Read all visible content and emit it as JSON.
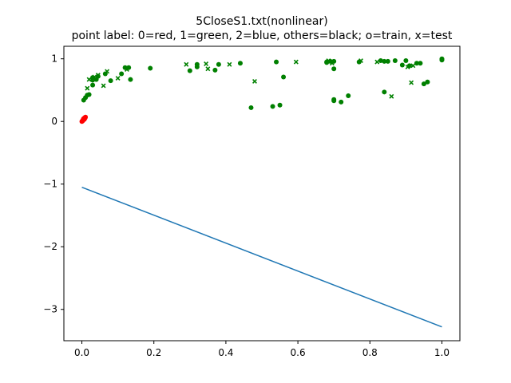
{
  "chart_data": {
    "type": "scatter",
    "title": "5CloseS1.txt(nonlinear)",
    "subtitle": "point label: 0=red, 1=green, 2=blue, others=black; o=train, x=test",
    "xlim": [
      -0.05,
      1.05
    ],
    "ylim": [
      -3.5,
      1.2
    ],
    "x_ticks": [
      0.0,
      0.2,
      0.4,
      0.6,
      0.8,
      1.0
    ],
    "x_tick_labels": [
      "0.0",
      "0.2",
      "0.4",
      "0.6",
      "0.8",
      "1.0"
    ],
    "y_ticks": [
      -3,
      -2,
      -1,
      0,
      1
    ],
    "y_tick_labels": [
      "−3",
      "−2",
      "−1",
      "0",
      "1"
    ],
    "grid": false,
    "colors": {
      "red": "#ff0000",
      "green": "#008000",
      "line": "#1f77b4"
    },
    "series": [
      {
        "marker": "o",
        "color": "red",
        "points": [
          [
            0.0,
            0.0
          ],
          [
            0.002,
            0.01
          ],
          [
            0.003,
            0.02
          ],
          [
            0.005,
            0.03
          ],
          [
            0.004,
            0.04
          ],
          [
            0.006,
            0.05
          ],
          [
            0.008,
            0.06
          ],
          [
            0.01,
            0.07
          ],
          [
            0.001,
            0.005
          ],
          [
            0.003,
            0.015
          ],
          [
            0.007,
            0.035
          ],
          [
            0.009,
            0.055
          ]
        ]
      },
      {
        "marker": "o",
        "color": "green",
        "points": [
          [
            0.005,
            0.34
          ],
          [
            0.01,
            0.38
          ],
          [
            0.015,
            0.42
          ],
          [
            0.02,
            0.43
          ],
          [
            0.03,
            0.58
          ],
          [
            0.03,
            0.66
          ],
          [
            0.03,
            0.7
          ],
          [
            0.04,
            0.67
          ],
          [
            0.045,
            0.72
          ],
          [
            0.065,
            0.76
          ],
          [
            0.08,
            0.65
          ],
          [
            0.11,
            0.76
          ],
          [
            0.12,
            0.86
          ],
          [
            0.13,
            0.86
          ],
          [
            0.135,
            0.67
          ],
          [
            0.19,
            0.85
          ],
          [
            0.3,
            0.81
          ],
          [
            0.32,
            0.87
          ],
          [
            0.32,
            0.91
          ],
          [
            0.37,
            0.82
          ],
          [
            0.38,
            0.91
          ],
          [
            0.44,
            0.93
          ],
          [
            0.47,
            0.22
          ],
          [
            0.53,
            0.24
          ],
          [
            0.54,
            0.95
          ],
          [
            0.55,
            0.26
          ],
          [
            0.56,
            0.71
          ],
          [
            0.68,
            0.95
          ],
          [
            0.68,
            0.94
          ],
          [
            0.69,
            0.96
          ],
          [
            0.7,
            0.35
          ],
          [
            0.7,
            0.33
          ],
          [
            0.7,
            0.84
          ],
          [
            0.7,
            0.96
          ],
          [
            0.72,
            0.31
          ],
          [
            0.74,
            0.41
          ],
          [
            0.77,
            0.95
          ],
          [
            0.83,
            0.97
          ],
          [
            0.84,
            0.47
          ],
          [
            0.84,
            0.96
          ],
          [
            0.85,
            0.96
          ],
          [
            0.87,
            0.97
          ],
          [
            0.89,
            0.9
          ],
          [
            0.9,
            0.97
          ],
          [
            0.91,
            0.89
          ],
          [
            0.93,
            0.93
          ],
          [
            0.94,
            0.93
          ],
          [
            0.95,
            0.6
          ],
          [
            0.96,
            0.63
          ],
          [
            1.0,
            0.99
          ],
          [
            1.0,
            0.98
          ],
          [
            1.0,
            1.0
          ],
          [
            1.0,
            0.99
          ]
        ]
      },
      {
        "marker": "x",
        "color": "green",
        "points": [
          [
            0.015,
            0.53
          ],
          [
            0.02,
            0.67
          ],
          [
            0.035,
            0.71
          ],
          [
            0.045,
            0.74
          ],
          [
            0.06,
            0.57
          ],
          [
            0.07,
            0.8
          ],
          [
            0.1,
            0.69
          ],
          [
            0.125,
            0.83
          ],
          [
            0.29,
            0.91
          ],
          [
            0.345,
            0.92
          ],
          [
            0.35,
            0.84
          ],
          [
            0.41,
            0.91
          ],
          [
            0.48,
            0.64
          ],
          [
            0.595,
            0.95
          ],
          [
            0.685,
            0.97
          ],
          [
            0.695,
            0.93
          ],
          [
            0.775,
            0.97
          ],
          [
            0.82,
            0.95
          ],
          [
            0.86,
            0.4
          ],
          [
            0.905,
            0.87
          ],
          [
            0.915,
            0.62
          ],
          [
            0.92,
            0.89
          ],
          [
            0.935,
            0.93
          ]
        ]
      }
    ],
    "line": {
      "color": "line",
      "x": [
        0.0,
        1.0
      ],
      "y": [
        -1.05,
        -3.28
      ]
    }
  }
}
